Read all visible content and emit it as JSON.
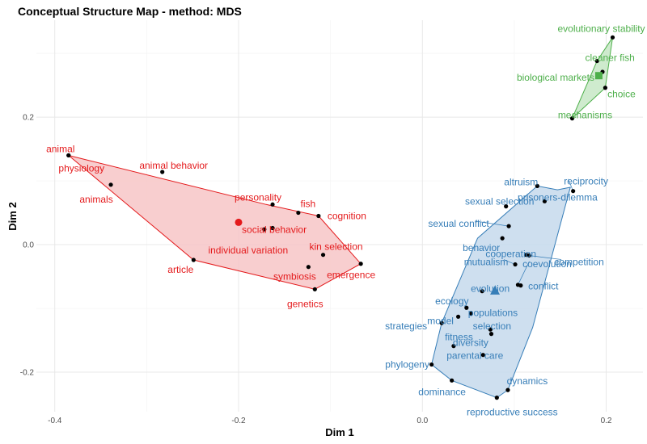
{
  "chart_data": {
    "type": "scatter",
    "title": "Conceptual Structure Map - method: MDS",
    "xlabel": "Dim 1",
    "ylabel": "Dim 2",
    "xlim": [
      -0.42,
      0.24
    ],
    "ylim": [
      -0.262,
      0.352
    ],
    "x_ticks": [
      -0.4,
      -0.2,
      0.0,
      0.2
    ],
    "x_tick_labels": [
      "-0.4",
      "-0.2",
      "0.0",
      "0.2"
    ],
    "y_ticks": [
      -0.2,
      0.0,
      0.2
    ],
    "y_tick_labels": [
      "-0.2",
      "0.0",
      "0.2"
    ],
    "grid": true,
    "clusters": [
      {
        "color": "#e41a1c",
        "fill": "#f7c6c7",
        "centroid_shape": "circle",
        "centroid": [
          -0.2,
          0.035
        ],
        "hull": [
          [
            -0.385,
            0.14
          ],
          [
            -0.17,
            0.063
          ],
          [
            -0.113,
            0.045
          ],
          [
            -0.067,
            -0.03
          ],
          [
            -0.117,
            -0.07
          ],
          [
            -0.249,
            -0.024
          ]
        ],
        "points": [
          {
            "label": "animal",
            "x": -0.385,
            "y": 0.14
          },
          {
            "label": "physiology",
            "x": -0.385,
            "y": 0.14
          },
          {
            "label": "animals",
            "x": -0.339,
            "y": 0.094
          },
          {
            "label": "animal behavior",
            "x": -0.283,
            "y": 0.114
          },
          {
            "label": "personality",
            "x": -0.163,
            "y": 0.063
          },
          {
            "label": "fish",
            "x": -0.135,
            "y": 0.05
          },
          {
            "label": "cognition",
            "x": -0.113,
            "y": 0.045
          },
          {
            "label": "social behavior",
            "x": -0.163,
            "y": 0.026
          },
          {
            "label": "individual variation",
            "x": -0.172,
            "y": 0.024
          },
          {
            "label": "kin selection",
            "x": -0.108,
            "y": -0.016
          },
          {
            "label": "emergence",
            "x": -0.067,
            "y": -0.03
          },
          {
            "label": "symbiosis",
            "x": -0.124,
            "y": -0.035
          },
          {
            "label": "genetics",
            "x": -0.117,
            "y": -0.07
          },
          {
            "label": "article",
            "x": -0.249,
            "y": -0.024
          }
        ]
      },
      {
        "color": "#377eb8",
        "fill": "#c6d9ec",
        "centroid_shape": "triangle",
        "centroid": [
          0.079,
          -0.072
        ],
        "hull": [
          [
            0.161,
            0.09
          ],
          [
            0.147,
            0.086
          ],
          [
            0.125,
            0.092
          ],
          [
            0.06,
            0.01
          ],
          [
            0.021,
            -0.123
          ],
          [
            0.01,
            -0.188
          ],
          [
            0.032,
            -0.213
          ],
          [
            0.081,
            -0.24
          ],
          [
            0.093,
            -0.228
          ],
          [
            0.12,
            -0.13
          ]
        ],
        "points": [
          {
            "label": "altruism",
            "x": 0.125,
            "y": 0.092
          },
          {
            "label": "reciprocity",
            "x": 0.164,
            "y": 0.084
          },
          {
            "label": "prisoners-dilemma",
            "x": 0.133,
            "y": 0.068
          },
          {
            "label": "sexual selection",
            "x": 0.091,
            "y": 0.06
          },
          {
            "label": "sexual conflict",
            "x": 0.094,
            "y": 0.029
          },
          {
            "label": "behavior",
            "x": 0.087,
            "y": 0.01
          },
          {
            "label": "cooperation",
            "x": 0.113,
            "y": -0.016
          },
          {
            "label": "competition",
            "x": 0.116,
            "y": -0.017
          },
          {
            "label": "mutualism",
            "x": 0.101,
            "y": -0.031
          },
          {
            "label": "coevolution",
            "x": 0.104,
            "y": -0.063
          },
          {
            "label": "evolution",
            "x": 0.065,
            "y": -0.073
          },
          {
            "label": "conflict",
            "x": 0.107,
            "y": -0.064
          },
          {
            "label": "ecology",
            "x": 0.048,
            "y": -0.099
          },
          {
            "label": "populations",
            "x": 0.053,
            "y": -0.108
          },
          {
            "label": "strategies",
            "x": 0.021,
            "y": -0.123
          },
          {
            "label": "model",
            "x": 0.039,
            "y": -0.113
          },
          {
            "label": "selection",
            "x": 0.074,
            "y": -0.133
          },
          {
            "label": "fitness",
            "x": 0.075,
            "y": -0.14
          },
          {
            "label": "diversity",
            "x": 0.034,
            "y": -0.159
          },
          {
            "label": "parental care",
            "x": 0.066,
            "y": -0.173
          },
          {
            "label": "phylogeny",
            "x": 0.01,
            "y": -0.188
          },
          {
            "label": "dominance",
            "x": 0.032,
            "y": -0.213
          },
          {
            "label": "dynamics",
            "x": 0.093,
            "y": -0.228
          },
          {
            "label": "reproductive success",
            "x": 0.081,
            "y": -0.24
          }
        ]
      },
      {
        "color": "#4daf4a",
        "fill": "#c7e8c6",
        "centroid_shape": "square",
        "centroid": [
          0.192,
          0.265
        ],
        "hull": [
          [
            0.207,
            0.325
          ],
          [
            0.199,
            0.246
          ],
          [
            0.163,
            0.198
          ],
          [
            0.19,
            0.288
          ]
        ],
        "points": [
          {
            "label": "evolutionary stability",
            "x": 0.207,
            "y": 0.325
          },
          {
            "label": "cleaner fish",
            "x": 0.19,
            "y": 0.288
          },
          {
            "label": "biological markets",
            "x": 0.196,
            "y": 0.271
          },
          {
            "label": "choice",
            "x": 0.199,
            "y": 0.246
          },
          {
            "label": "mechanisms",
            "x": 0.163,
            "y": 0.198
          }
        ]
      }
    ]
  }
}
